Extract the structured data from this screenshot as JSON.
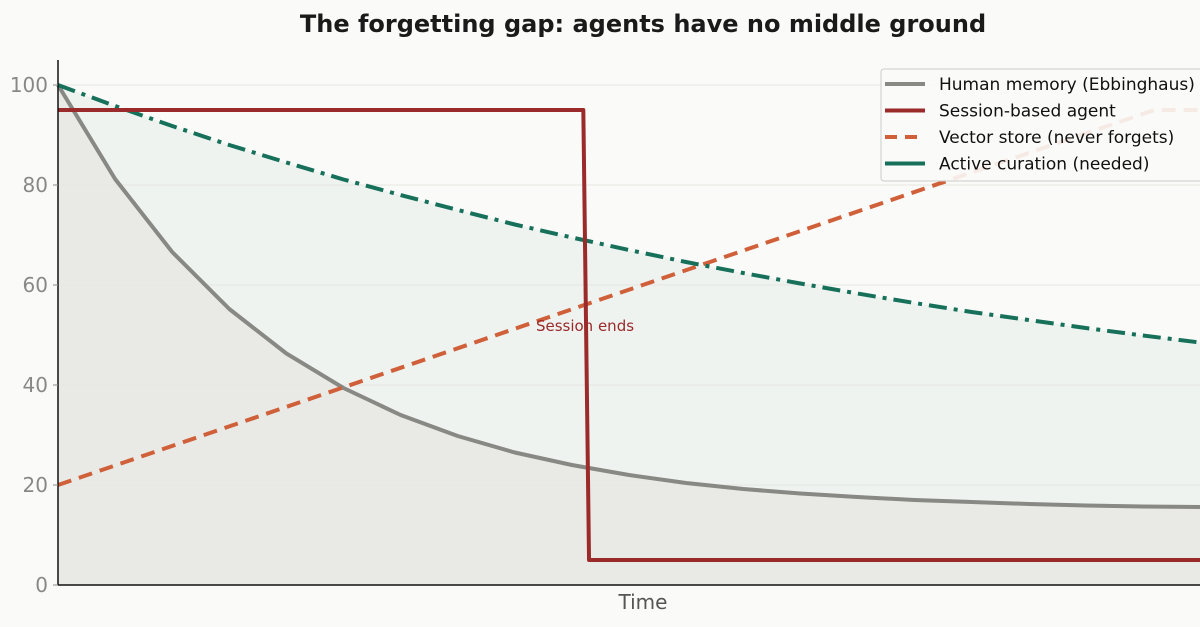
{
  "chart_data": {
    "type": "line",
    "title": "The forgetting gap: agents have no middle ground",
    "xlabel": "Time",
    "ylabel": "",
    "xlim": [
      0,
      10
    ],
    "ylim": [
      0,
      105
    ],
    "yticks": [
      0,
      20,
      40,
      60,
      80,
      100
    ],
    "grid": "horizontal",
    "legend_position": "top-right",
    "series": [
      {
        "name": "Human memory (Ebbinghaus)",
        "color": "#888884",
        "style": "solid",
        "fill": "#e9eae6",
        "points": [
          [
            0,
            100
          ],
          [
            0.5,
            81.2
          ],
          [
            1,
            66.6
          ],
          [
            1.5,
            55.2
          ],
          [
            2,
            46.3
          ],
          [
            2.5,
            39.4
          ],
          [
            3,
            34.0
          ],
          [
            3.5,
            29.8
          ],
          [
            4,
            26.5
          ],
          [
            4.5,
            24.0
          ],
          [
            5,
            22.0
          ],
          [
            5.5,
            20.4
          ],
          [
            6,
            19.2
          ],
          [
            6.5,
            18.3
          ],
          [
            7,
            17.6
          ],
          [
            7.5,
            17.0
          ],
          [
            8,
            16.6
          ],
          [
            8.5,
            16.2
          ],
          [
            9,
            15.9
          ],
          [
            9.5,
            15.7
          ],
          [
            10,
            15.6
          ]
        ]
      },
      {
        "name": "Session-based agent",
        "color": "#9b2a2a",
        "style": "solid",
        "points": [
          [
            0,
            95
          ],
          [
            4.6,
            95
          ],
          [
            4.65,
            5
          ],
          [
            10,
            5
          ]
        ]
      },
      {
        "name": "Vector store (never forgets)",
        "color": "#d0603a",
        "style": "dashed",
        "points": [
          [
            0,
            20
          ],
          [
            9.6,
            95
          ],
          [
            10,
            95
          ]
        ]
      },
      {
        "name": "Active curation (needed)",
        "color": "#16705a",
        "style": "dashdot",
        "fill": "#eef3f0",
        "points": [
          [
            0,
            100
          ],
          [
            0.5,
            95.8
          ],
          [
            1,
            91.8
          ],
          [
            1.5,
            88.0
          ],
          [
            2,
            84.5
          ],
          [
            2.5,
            81.1
          ],
          [
            3,
            78.0
          ],
          [
            3.5,
            75.0
          ],
          [
            4,
            72.1
          ],
          [
            4.5,
            69.5
          ],
          [
            5,
            67.0
          ],
          [
            5.5,
            64.6
          ],
          [
            6,
            62.4
          ],
          [
            6.5,
            60.3
          ],
          [
            7,
            58.3
          ],
          [
            7.5,
            56.4
          ],
          [
            8,
            54.6
          ],
          [
            8.5,
            53.0
          ],
          [
            9,
            51.4
          ],
          [
            9.5,
            49.9
          ],
          [
            10,
            48.5
          ]
        ]
      }
    ],
    "annotations": [
      {
        "text": "Session ends",
        "x": 4.65,
        "y": 52,
        "color": "#9b2a2a"
      }
    ]
  }
}
